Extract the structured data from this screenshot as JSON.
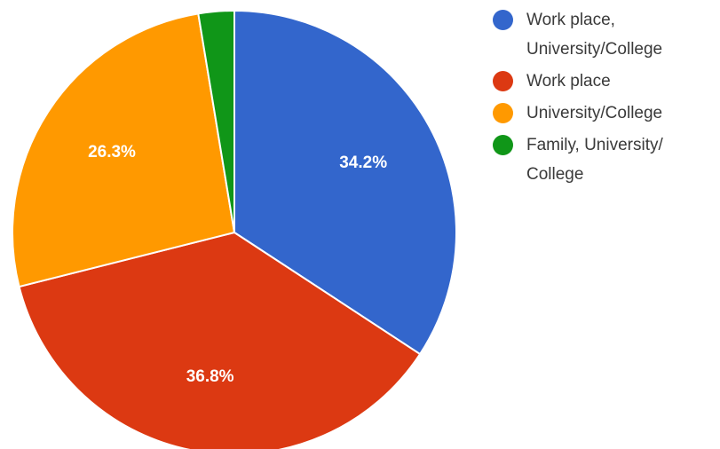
{
  "chart_data": {
    "type": "pie",
    "title": "",
    "slices": [
      {
        "label": "Work place, University/College",
        "value": 34.2,
        "display": "34.2%",
        "color": "#3366cc"
      },
      {
        "label": "Work place",
        "value": 36.8,
        "display": "36.8%",
        "color": "#dc3912"
      },
      {
        "label": "University/College",
        "value": 26.3,
        "display": "26.3%",
        "color": "#ff9900"
      },
      {
        "label": "Family, University/\nCollege",
        "value": 2.6,
        "display": "",
        "color": "#109618"
      }
    ],
    "start_angle_deg": 0,
    "direction": "clockwise",
    "legend_position": "right"
  }
}
